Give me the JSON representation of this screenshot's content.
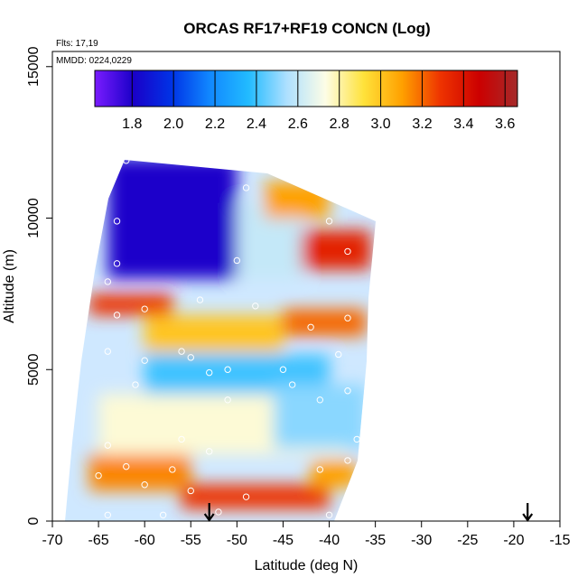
{
  "chart_data": {
    "type": "heatmap",
    "title": "ORCAS RF17+RF19 CONCN (Log)",
    "annotations": {
      "flights": "Flts: 17,19",
      "dates": "MMDD: 0224,0229"
    },
    "xlabel": "Latitude (deg N)",
    "ylabel": "Altitude (m)",
    "xlim": [
      -70,
      -15
    ],
    "ylim": [
      0,
      15500
    ],
    "x_ticks": [
      -70,
      -65,
      -60,
      -55,
      -50,
      -45,
      -40,
      -35,
      -30,
      -25,
      -20,
      -15
    ],
    "x_tick_labels": [
      "-70",
      "-65",
      "-60",
      "-55",
      "-50",
      "-45",
      "-40",
      "-35",
      "-30",
      "-25",
      "-20",
      "-15"
    ],
    "y_ticks": [
      0,
      5000,
      10000,
      15000
    ],
    "y_tick_labels": [
      "0",
      "5000",
      "10000",
      "15000"
    ],
    "colorbar": {
      "range": [
        1.62,
        3.66
      ],
      "ticks": [
        1.8,
        2.0,
        2.2,
        2.4,
        2.6,
        2.8,
        3.0,
        3.2,
        3.4,
        3.6
      ],
      "tick_labels": [
        "1.8",
        "2.0",
        "2.2",
        "2.4",
        "2.6",
        "2.8",
        "3.0",
        "3.2",
        "3.4",
        "3.6"
      ],
      "colors": [
        "#7a1cff",
        "#1a00c8",
        "#0033e6",
        "#1188ff",
        "#22bbff",
        "#aee0ff",
        "#fdfde6",
        "#ffe23a",
        "#ffa000",
        "#ee3300",
        "#cc0000",
        "#a52a2a"
      ]
    },
    "arrow_markers": [
      {
        "latitude": -53,
        "altitude": 0
      },
      {
        "latitude": -18.5,
        "altitude": 0
      }
    ],
    "regions": [
      {
        "lat": [
          -64,
          -50
        ],
        "alt": [
          8000,
          12000
        ],
        "value": 1.8
      },
      {
        "lat": [
          -50,
          -43
        ],
        "alt": [
          8000,
          10500
        ],
        "value": 2.6
      },
      {
        "lat": [
          -47,
          -40
        ],
        "alt": [
          10000,
          11200
        ],
        "value": 3.1
      },
      {
        "lat": [
          -43,
          -35.5
        ],
        "alt": [
          8300,
          9600
        ],
        "value": 3.35
      },
      {
        "lat": [
          -66,
          -57
        ],
        "alt": [
          6800,
          7500
        ],
        "value": 3.3
      },
      {
        "lat": [
          -60,
          -45
        ],
        "alt": [
          5600,
          6800
        ],
        "value": 3.0
      },
      {
        "lat": [
          -45,
          -36
        ],
        "alt": [
          6100,
          7000
        ],
        "value": 3.2
      },
      {
        "lat": [
          -60,
          -40
        ],
        "alt": [
          4000,
          5500
        ],
        "value": 2.4
      },
      {
        "lat": [
          -65,
          -38
        ],
        "alt": [
          2200,
          4200
        ],
        "value": 2.75
      },
      {
        "lat": [
          -66,
          -55
        ],
        "alt": [
          1000,
          2200
        ],
        "value": 3.15
      },
      {
        "lat": [
          -56,
          -40
        ],
        "alt": [
          400,
          1200
        ],
        "value": 3.3
      },
      {
        "lat": [
          -42,
          -37
        ],
        "alt": [
          1100,
          2000
        ],
        "value": 3.1
      },
      {
        "lat": [
          -46,
          -36
        ],
        "alt": [
          2400,
          4500
        ],
        "value": 2.5
      }
    ],
    "sample_points": [
      [
        -62,
        11900
      ],
      [
        -51,
        11900
      ],
      [
        -63,
        9900
      ],
      [
        -49,
        11000
      ],
      [
        -40,
        9900
      ],
      [
        -63,
        8500
      ],
      [
        -50,
        8600
      ],
      [
        -38,
        8900
      ],
      [
        -64,
        7900
      ],
      [
        -54,
        7300
      ],
      [
        -60,
        7000
      ],
      [
        -63,
        6800
      ],
      [
        -48,
        7100
      ],
      [
        -42,
        6400
      ],
      [
        -38,
        6700
      ],
      [
        -64,
        5600
      ],
      [
        -56,
        5600
      ],
      [
        -55,
        5400
      ],
      [
        -60,
        5300
      ],
      [
        -51,
        5000
      ],
      [
        -53,
        4900
      ],
      [
        -45,
        5000
      ],
      [
        -39,
        5500
      ],
      [
        -61,
        4500
      ],
      [
        -44,
        4500
      ],
      [
        -41,
        4000
      ],
      [
        -38,
        4300
      ],
      [
        -51,
        4000
      ],
      [
        -64,
        2500
      ],
      [
        -56,
        2700
      ],
      [
        -53,
        2300
      ],
      [
        -37,
        2700
      ],
      [
        -62,
        1800
      ],
      [
        -57,
        1700
      ],
      [
        -38,
        2000
      ],
      [
        -60,
        1200
      ],
      [
        -65,
        1500
      ],
      [
        -41,
        1700
      ],
      [
        -49,
        800
      ],
      [
        -55,
        1000
      ],
      [
        -58,
        200
      ],
      [
        -52,
        300
      ],
      [
        -64,
        200
      ],
      [
        -40,
        200
      ]
    ],
    "grid": false,
    "legend": "none"
  }
}
